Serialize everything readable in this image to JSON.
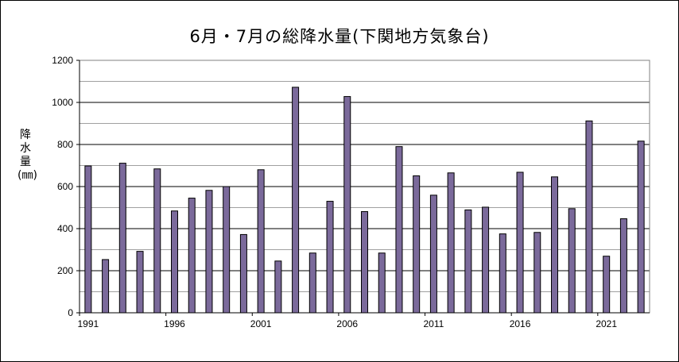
{
  "chart_data": {
    "type": "bar",
    "title": "6月・7月の総降水量(下関地方気象台)",
    "ylabel": "降水量(㎜)",
    "xlabel": "",
    "ylim": [
      0,
      1200
    ],
    "y_ticks": [
      "0",
      "200",
      "400",
      "600",
      "800",
      "1000",
      "1200"
    ],
    "x_tick_labels": [
      "1991",
      "1996",
      "2001",
      "2006",
      "2011",
      "2016",
      "2021"
    ],
    "categories": [
      "1991",
      "1992",
      "1993",
      "1994",
      "1995",
      "1996",
      "1997",
      "1998",
      "1999",
      "2000",
      "2001",
      "2002",
      "2003",
      "2004",
      "2005",
      "2006",
      "2007",
      "2008",
      "2009",
      "2010",
      "2011",
      "2012",
      "2013",
      "2014",
      "2015",
      "2016",
      "2017",
      "2018",
      "2019",
      "2020",
      "2021",
      "2022",
      "2023"
    ],
    "values": [
      698,
      253,
      711,
      292,
      684,
      484,
      545,
      582,
      600,
      372,
      680,
      246,
      1072,
      284,
      530,
      1028,
      481,
      284,
      790,
      651,
      559,
      665,
      489,
      502,
      375,
      668,
      382,
      646,
      495,
      912,
      269,
      447,
      816
    ],
    "grid": true,
    "legend": "none",
    "bar_color": "#7b6a9b"
  }
}
